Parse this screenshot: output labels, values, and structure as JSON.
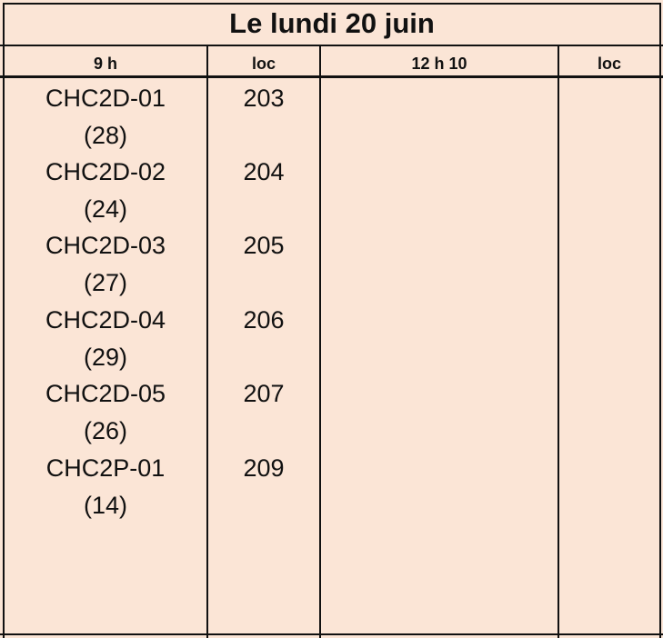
{
  "title": "Le lundi 20 juin",
  "headers": {
    "col1": "9 h",
    "col2": "loc",
    "col3": "12 h 10",
    "col4": "loc"
  },
  "rows": [
    {
      "group": "CHC2D-01",
      "count": "(28)",
      "room": "203"
    },
    {
      "group": "CHC2D-02",
      "count": "(24)",
      "room": "204"
    },
    {
      "group": "CHC2D-03",
      "count": "(27)",
      "room": "205"
    },
    {
      "group": "CHC2D-04",
      "count": "(29)",
      "room": "206"
    },
    {
      "group": "CHC2D-05",
      "count": "(26)",
      "room": "207"
    },
    {
      "group": "CHC2P-01",
      "count": "(14)",
      "room": "209"
    }
  ]
}
